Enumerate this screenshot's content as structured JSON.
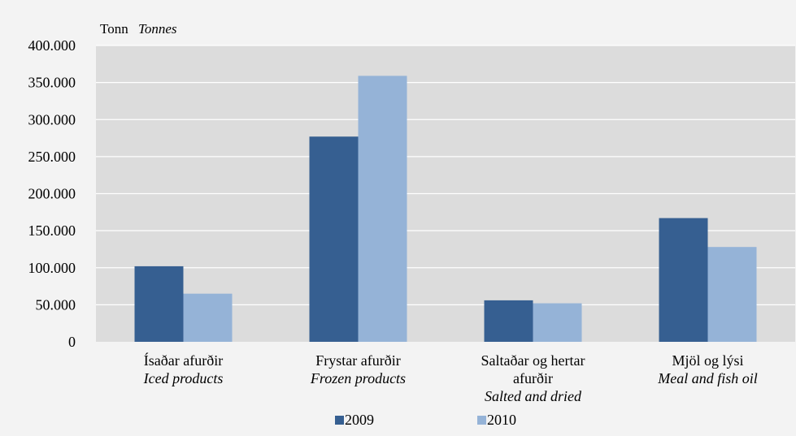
{
  "chart_data": {
    "type": "bar",
    "unit_label": "Tonn",
    "unit_label_en": "Tonnes",
    "categories": [
      {
        "is": [
          "Ísaðar afurðir"
        ],
        "en": "Iced products"
      },
      {
        "is": [
          "Frystar afurðir"
        ],
        "en": "Frozen products"
      },
      {
        "is": [
          "Saltaðar og hertar",
          "afurðir"
        ],
        "en": "Salted and dried"
      },
      {
        "is": [
          "Mjöl og lýsi"
        ],
        "en": "Meal and fish oil"
      }
    ],
    "series": [
      {
        "name": "2009",
        "color": "#365f91",
        "values": [
          102000,
          277000,
          56000,
          167000
        ]
      },
      {
        "name": "2010",
        "color": "#95b3d7",
        "values": [
          65000,
          359000,
          52000,
          128000
        ]
      }
    ],
    "ylim": [
      0,
      400000
    ],
    "yticks": [
      0,
      50000,
      100000,
      150000,
      200000,
      250000,
      300000,
      350000,
      400000
    ],
    "ytick_labels": [
      "0",
      "50.000",
      "100.000",
      "150.000",
      "200.000",
      "250.000",
      "300.000",
      "350.000",
      "400.000"
    ],
    "grid": true,
    "legend_position": "bottom",
    "colors": {
      "plot_background": "#dcdcdc",
      "page_background": "#f3f3f3",
      "gridline": "#ffffff"
    }
  }
}
